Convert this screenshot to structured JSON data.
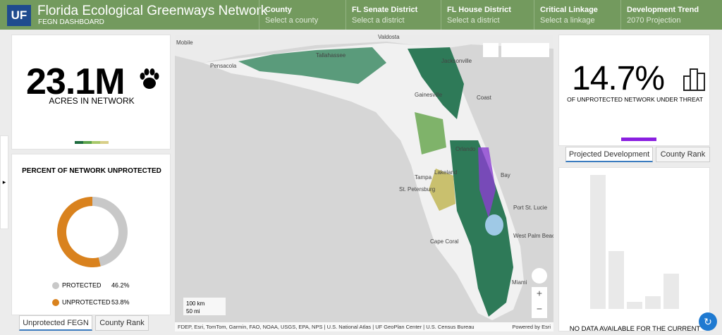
{
  "header": {
    "logo": "UF",
    "title": "Florida Ecological Greenways Network",
    "subtitle": "FEGN DASHBOARD"
  },
  "filters": [
    {
      "label": "County",
      "placeholder": "Select a county"
    },
    {
      "label": "FL Senate District",
      "placeholder": "Select a district"
    },
    {
      "label": "FL House District",
      "placeholder": "Select a district"
    },
    {
      "label": "Critical Linkage",
      "placeholder": "Select a linkage"
    },
    {
      "label": "Development Trend",
      "placeholder": "2070 Projection"
    }
  ],
  "acres": {
    "value": "23.1M",
    "label": "ACRES IN NETWORK"
  },
  "unprotected": {
    "title": "PERCENT OF NETWORK UNPROTECTED",
    "chart": {
      "type": "pie",
      "categories": [
        "PROTECTED",
        "UNPROTECTED"
      ],
      "values": [
        46.2,
        53.8
      ],
      "value_labels": [
        "46.2%",
        "53.8%"
      ],
      "colors": [
        "#c8c8c8",
        "#d9821e"
      ]
    }
  },
  "left_tabs": [
    "Unprotected FEGN",
    "County Rank"
  ],
  "map": {
    "labels": [
      "Mobile",
      "Valdosta",
      "Pensacola",
      "Tallahassee",
      "Jacksonville",
      "Gainesville",
      "Coast",
      "Orlando",
      "Lakeland",
      "Tampa",
      "St. Petersburg",
      "Bay",
      "Port St. Lucie",
      "West Palm Beach",
      "Cape Coral",
      "Miami"
    ],
    "scale": [
      "100 km",
      "50 mi"
    ],
    "attribution": "FDEP, Esri, TomTom, Garmin, FAO, NOAA, USGS, EPA, NPS | U.S. National Atlas | UF GeoPlan Center | U.S. Census Bureau",
    "powered": "Powered by Esri"
  },
  "threat": {
    "value": "14.7%",
    "label": "OF UNPROTECTED NETWORK UNDER THREAT"
  },
  "right_tabs": [
    "Projected Development",
    "County Rank"
  ],
  "development": {
    "message": "NO DATA AVAILABLE FOR THE CURRENT"
  }
}
